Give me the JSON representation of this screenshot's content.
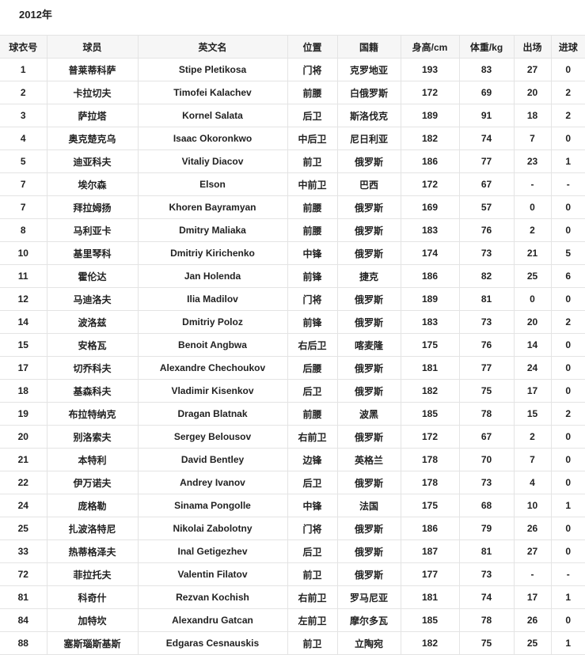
{
  "title": "2012年",
  "columns": [
    "球衣号",
    "球员",
    "英文名",
    "位置",
    "国籍",
    "身高/cm",
    "体重/kg",
    "出场",
    "进球"
  ],
  "rows": [
    [
      "1",
      "普莱蒂科萨",
      "Stipe Pletikosa",
      "门将",
      "克罗地亚",
      "193",
      "83",
      "27",
      "0"
    ],
    [
      "2",
      "卡拉切夫",
      "Timofei Kalachev",
      "前腰",
      "白俄罗斯",
      "172",
      "69",
      "20",
      "2"
    ],
    [
      "3",
      "萨拉塔",
      "Kornel Salata",
      "后卫",
      "斯洛伐克",
      "189",
      "91",
      "18",
      "2"
    ],
    [
      "4",
      "奥克楚克乌",
      "Isaac Okoronkwo",
      "中后卫",
      "尼日利亚",
      "182",
      "74",
      "7",
      "0"
    ],
    [
      "5",
      "迪亚科夫",
      "Vitaliy Diacov",
      "前卫",
      "俄罗斯",
      "186",
      "77",
      "23",
      "1"
    ],
    [
      "7",
      "埃尔森",
      "Elson",
      "中前卫",
      "巴西",
      "172",
      "67",
      "-",
      "-"
    ],
    [
      "7",
      "拜拉姆扬",
      "Khoren Bayramyan",
      "前腰",
      "俄罗斯",
      "169",
      "57",
      "0",
      "0"
    ],
    [
      "8",
      "马利亚卡",
      "Dmitry Maliaka",
      "前腰",
      "俄罗斯",
      "183",
      "76",
      "2",
      "0"
    ],
    [
      "10",
      "基里琴科",
      "Dmitriy Kirichenko",
      "中锋",
      "俄罗斯",
      "174",
      "73",
      "21",
      "5"
    ],
    [
      "11",
      "霍伦达",
      "Jan Holenda",
      "前锋",
      "捷克",
      "186",
      "82",
      "25",
      "6"
    ],
    [
      "12",
      "马迪洛夫",
      "Ilia Madilov",
      "门将",
      "俄罗斯",
      "189",
      "81",
      "0",
      "0"
    ],
    [
      "14",
      "波洛兹",
      "Dmitriy Poloz",
      "前锋",
      "俄罗斯",
      "183",
      "73",
      "20",
      "2"
    ],
    [
      "15",
      "安格瓦",
      "Benoit Angbwa",
      "右后卫",
      "喀麦隆",
      "175",
      "76",
      "14",
      "0"
    ],
    [
      "17",
      "切乔科夫",
      "Alexandre Chechoukov",
      "后腰",
      "俄罗斯",
      "181",
      "77",
      "24",
      "0"
    ],
    [
      "18",
      "基森科夫",
      "Vladimir Kisenkov",
      "后卫",
      "俄罗斯",
      "182",
      "75",
      "17",
      "0"
    ],
    [
      "19",
      "布拉特纳克",
      "Dragan Blatnak",
      "前腰",
      "波黑",
      "185",
      "78",
      "15",
      "2"
    ],
    [
      "20",
      "别洛索夫",
      "Sergey Belousov",
      "右前卫",
      "俄罗斯",
      "172",
      "67",
      "2",
      "0"
    ],
    [
      "21",
      "本特利",
      "David Bentley",
      "边锋",
      "英格兰",
      "178",
      "70",
      "7",
      "0"
    ],
    [
      "22",
      "伊万诺夫",
      "Andrey Ivanov",
      "后卫",
      "俄罗斯",
      "178",
      "73",
      "4",
      "0"
    ],
    [
      "24",
      "庞格勒",
      "Sinama Pongolle",
      "中锋",
      "法国",
      "175",
      "68",
      "10",
      "1"
    ],
    [
      "25",
      "扎波洛特尼",
      "Nikolai Zabolotny",
      "门将",
      "俄罗斯",
      "186",
      "79",
      "26",
      "0"
    ],
    [
      "33",
      "热蒂格泽夫",
      "Inal Getigezhev",
      "后卫",
      "俄罗斯",
      "187",
      "81",
      "27",
      "0"
    ],
    [
      "72",
      "菲拉托夫",
      "Valentin Filatov",
      "前卫",
      "俄罗斯",
      "177",
      "73",
      "-",
      "-"
    ],
    [
      "81",
      "科奇什",
      "Rezvan Kochish",
      "右前卫",
      "罗马尼亚",
      "181",
      "74",
      "17",
      "1"
    ],
    [
      "84",
      "加特坎",
      "Alexandru Gatcan",
      "左前卫",
      "摩尔多瓦",
      "185",
      "78",
      "26",
      "0"
    ],
    [
      "88",
      "塞斯瑙斯基斯",
      "Edgaras Cesnauskis",
      "前卫",
      "立陶宛",
      "182",
      "75",
      "25",
      "1"
    ]
  ]
}
